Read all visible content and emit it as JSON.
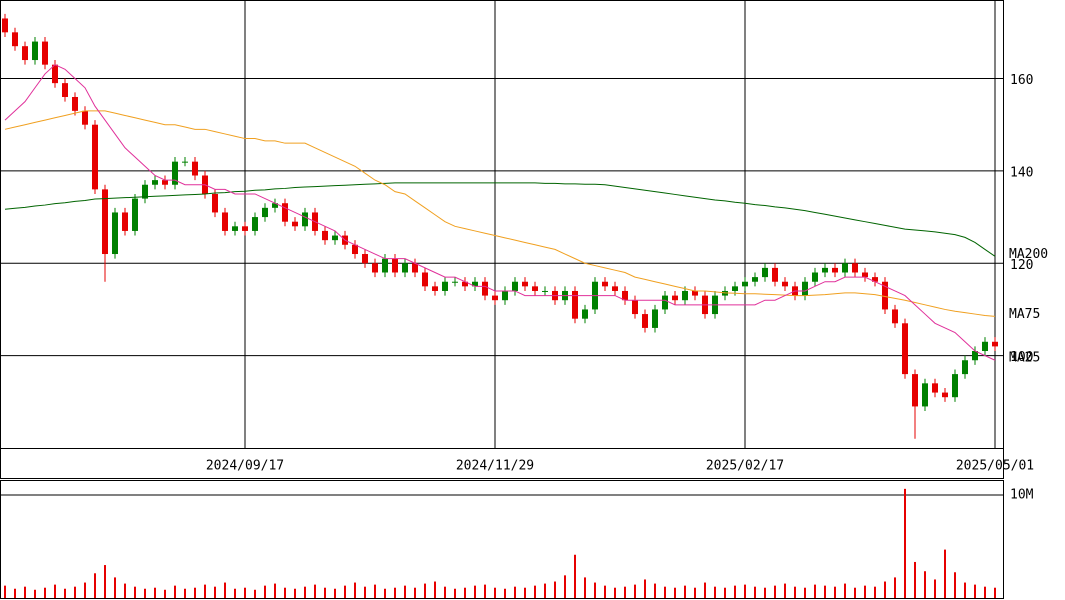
{
  "chart_data": {
    "type": "candlestick",
    "categories": [
      null,
      null,
      null,
      null,
      null,
      null,
      null,
      null,
      null,
      null,
      null,
      null,
      null,
      null,
      null,
      null,
      null,
      null,
      null,
      null,
      null,
      null,
      null,
      null,
      "2024/09/17",
      null,
      null,
      null,
      null,
      null,
      null,
      null,
      null,
      null,
      null,
      null,
      null,
      null,
      null,
      null,
      null,
      null,
      null,
      null,
      null,
      null,
      null,
      null,
      null,
      "2024/11/29",
      null,
      null,
      null,
      null,
      null,
      null,
      null,
      null,
      null,
      null,
      null,
      null,
      null,
      null,
      null,
      null,
      null,
      null,
      null,
      null,
      null,
      null,
      null,
      null,
      "2025/02/17",
      null,
      null,
      null,
      null,
      null,
      null,
      null,
      null,
      null,
      null,
      null,
      null,
      null,
      null,
      null,
      null,
      null,
      null,
      null,
      null,
      null,
      null,
      null,
      null,
      "2025/05/01"
    ],
    "open": [
      173,
      170,
      167,
      164,
      168,
      163,
      159,
      156,
      153,
      150,
      136,
      122,
      131,
      127,
      134,
      137,
      138,
      137,
      142,
      142,
      139,
      135,
      131,
      127,
      128,
      127,
      130,
      132,
      133,
      129,
      128,
      131,
      127,
      125,
      126,
      124,
      122,
      120,
      118,
      121,
      118,
      120,
      118,
      115,
      114,
      116,
      116,
      115,
      116,
      113,
      112,
      114,
      116,
      115,
      114,
      114,
      112,
      114,
      108,
      110,
      116,
      115,
      114,
      112,
      109,
      106,
      110,
      113,
      112,
      114,
      113,
      109,
      113,
      114,
      115,
      116,
      117,
      119,
      116,
      115,
      113,
      116,
      118,
      119,
      118,
      120,
      118,
      117,
      116,
      110,
      107,
      96,
      89,
      94,
      92,
      91,
      96,
      99,
      101,
      103
    ],
    "high": [
      174,
      171,
      168,
      169,
      169,
      164,
      160,
      157,
      154,
      151,
      137,
      132,
      132,
      135,
      138,
      139,
      139,
      143,
      143,
      143,
      140,
      136,
      132,
      129,
      129,
      131,
      133,
      134,
      134,
      130,
      132,
      132,
      128,
      127,
      127,
      125,
      123,
      121,
      122,
      122,
      121,
      121,
      119,
      116,
      117,
      117,
      117,
      117,
      117,
      114,
      115,
      117,
      117,
      116,
      115,
      115,
      115,
      115,
      111,
      117,
      117,
      116,
      115,
      113,
      110,
      111,
      114,
      114,
      115,
      115,
      114,
      114,
      115,
      116,
      117,
      118,
      120,
      120,
      117,
      116,
      117,
      119,
      120,
      120,
      121,
      121,
      119,
      118,
      117,
      111,
      108,
      97,
      95,
      95,
      93,
      97,
      100,
      102,
      104,
      104
    ],
    "low": [
      169,
      166,
      163,
      163,
      162,
      158,
      155,
      152,
      149,
      135,
      116,
      121,
      126,
      126,
      133,
      136,
      136,
      136,
      141,
      138,
      134,
      130,
      126,
      126,
      126,
      126,
      129,
      131,
      128,
      127,
      127,
      126,
      124,
      124,
      123,
      121,
      119,
      117,
      117,
      117,
      117,
      117,
      114,
      113,
      113,
      115,
      114,
      114,
      112,
      111,
      111,
      113,
      114,
      113,
      113,
      111,
      111,
      107,
      107,
      109,
      114,
      113,
      111,
      108,
      105,
      105,
      109,
      111,
      111,
      112,
      108,
      108,
      112,
      113,
      114,
      115,
      116,
      115,
      114,
      112,
      112,
      115,
      117,
      117,
      117,
      117,
      116,
      115,
      109,
      106,
      95,
      82,
      88,
      91,
      90,
      90,
      95,
      98,
      100,
      101
    ],
    "close": [
      170,
      167,
      164,
      168,
      163,
      159,
      156,
      153,
      150,
      136,
      122,
      131,
      127,
      134,
      137,
      138,
      137,
      142,
      142,
      139,
      135,
      131,
      127,
      128,
      127,
      130,
      132,
      133,
      129,
      128,
      131,
      127,
      125,
      126,
      124,
      122,
      120,
      118,
      121,
      118,
      120,
      118,
      115,
      114,
      116,
      116,
      115,
      116,
      113,
      112,
      114,
      116,
      115,
      114,
      114,
      112,
      114,
      108,
      110,
      116,
      115,
      114,
      112,
      109,
      106,
      110,
      113,
      112,
      114,
      113,
      109,
      113,
      114,
      115,
      116,
      117,
      119,
      116,
      115,
      113,
      116,
      118,
      119,
      118,
      120,
      118,
      117,
      116,
      110,
      107,
      96,
      89,
      94,
      92,
      91,
      96,
      99,
      101,
      103,
      102
    ],
    "up_color": "#008000",
    "down_color": "#e60000",
    "series": [
      {
        "name": "MA200",
        "color": "#006400",
        "values": [
          131.7,
          131.9,
          132.1,
          132.4,
          132.6,
          132.9,
          133.1,
          133.4,
          133.6,
          133.9,
          134,
          134.1,
          134.2,
          134.3,
          134.4,
          134.5,
          134.6,
          134.7,
          134.8,
          134.9,
          135,
          135.2,
          135.3,
          135.5,
          135.6,
          135.8,
          135.9,
          136.1,
          136.2,
          136.4,
          136.5,
          136.6,
          136.7,
          136.8,
          136.9,
          137,
          137.1,
          137.2,
          137.3,
          137.4,
          137.4,
          137.4,
          137.4,
          137.4,
          137.4,
          137.4,
          137.4,
          137.4,
          137.4,
          137.4,
          137.4,
          137.4,
          137.4,
          137.4,
          137.3,
          137.3,
          137.2,
          137.2,
          137.1,
          137.1,
          137,
          136.7,
          136.4,
          136.1,
          135.8,
          135.5,
          135.2,
          134.9,
          134.6,
          134.3,
          134,
          133.7,
          133.5,
          133.2,
          133,
          132.7,
          132.5,
          132.2,
          132,
          131.7,
          131.4,
          131,
          130.6,
          130.2,
          129.8,
          129.4,
          129,
          128.6,
          128.2,
          127.8,
          127.4,
          127.2,
          127,
          126.8,
          126.5,
          126.2,
          125.6,
          124.5,
          123,
          121.5
        ]
      },
      {
        "name": "MA75",
        "color": "#f0a020",
        "values": [
          149,
          149.5,
          150,
          150.5,
          151,
          151.5,
          152,
          152.5,
          153,
          153,
          153,
          152.5,
          152,
          151.5,
          151,
          150.5,
          150,
          150,
          149.5,
          149,
          149,
          148.5,
          148,
          147.5,
          147,
          147,
          146.5,
          146.5,
          146,
          146,
          146,
          145,
          144,
          143,
          142,
          141,
          139.5,
          138,
          137,
          135.5,
          135,
          133.5,
          132,
          130.5,
          129,
          128,
          127.5,
          127,
          126.5,
          126,
          125.5,
          125,
          124.5,
          124,
          123.5,
          123,
          122,
          121,
          120,
          119.5,
          119,
          118.5,
          118,
          117,
          116.5,
          116,
          115.5,
          115,
          114.5,
          114,
          114,
          113.8,
          113.6,
          113.5,
          113.4,
          113.4,
          113.3,
          113.2,
          113.1,
          113,
          113,
          113.1,
          113.2,
          113.4,
          113.6,
          113.6,
          113.4,
          113.2,
          112.8,
          112.4,
          112,
          111.5,
          111,
          110.5,
          110,
          109.6,
          109.3,
          109,
          108.7,
          108.5
        ]
      },
      {
        "name": "MA25",
        "color": "#e0309a",
        "values": [
          151,
          153,
          155,
          158,
          161,
          163,
          162,
          160,
          158,
          154,
          151,
          148,
          145,
          143,
          141,
          139,
          138,
          138,
          137,
          137,
          137,
          136,
          136,
          135,
          135,
          135,
          134,
          133,
          132,
          131,
          130,
          129,
          128,
          127,
          125,
          124,
          123,
          122,
          121,
          121,
          121,
          120,
          119,
          118,
          117,
          117,
          116,
          115,
          115,
          114,
          114,
          114,
          113,
          113,
          113,
          113,
          113,
          113,
          113,
          113,
          113,
          113,
          112,
          112,
          112,
          112,
          112,
          111,
          111,
          111,
          111,
          111,
          111,
          111,
          111,
          111,
          112,
          112,
          113,
          114,
          114,
          115,
          116,
          116,
          117,
          117,
          117,
          116,
          115,
          114,
          113,
          111,
          109,
          107,
          106,
          105,
          103,
          101,
          100,
          99
        ]
      }
    ],
    "ylim": [
      80,
      177
    ],
    "yticks": [
      100,
      120,
      140,
      160
    ],
    "volume": [
      1200000,
      900000,
      1100000,
      800000,
      1000000,
      1300000,
      900000,
      1100000,
      1500000,
      2400000,
      3200000,
      2000000,
      1400000,
      1100000,
      900000,
      1000000,
      800000,
      1200000,
      900000,
      1000000,
      1300000,
      1100000,
      1500000,
      900000,
      1000000,
      800000,
      1200000,
      1400000,
      1000000,
      900000,
      1100000,
      1300000,
      1000000,
      900000,
      1200000,
      1500000,
      1100000,
      1300000,
      900000,
      1000000,
      1200000,
      1000000,
      1400000,
      1600000,
      1100000,
      900000,
      1000000,
      1200000,
      1300000,
      1000000,
      900000,
      1100000,
      1000000,
      1200000,
      1400000,
      1600000,
      2200000,
      4200000,
      2000000,
      1500000,
      1200000,
      1000000,
      1100000,
      1300000,
      1800000,
      1400000,
      1100000,
      1000000,
      1200000,
      1000000,
      1500000,
      1100000,
      1000000,
      1200000,
      1300000,
      1100000,
      1000000,
      1200000,
      1400000,
      1100000,
      1000000,
      1300000,
      1200000,
      1100000,
      1400000,
      1000000,
      1200000,
      1100000,
      1600000,
      2000000,
      10600000,
      3500000,
      2600000,
      1800000,
      4700000,
      2500000,
      1500000,
      1300000,
      1100000,
      1000000
    ],
    "volume_color": "#e60000",
    "volume_ylim": [
      0,
      11460000
    ],
    "volume_yticks": [
      {
        "value": 10000000,
        "label": "10M"
      }
    ],
    "grid": true
  }
}
